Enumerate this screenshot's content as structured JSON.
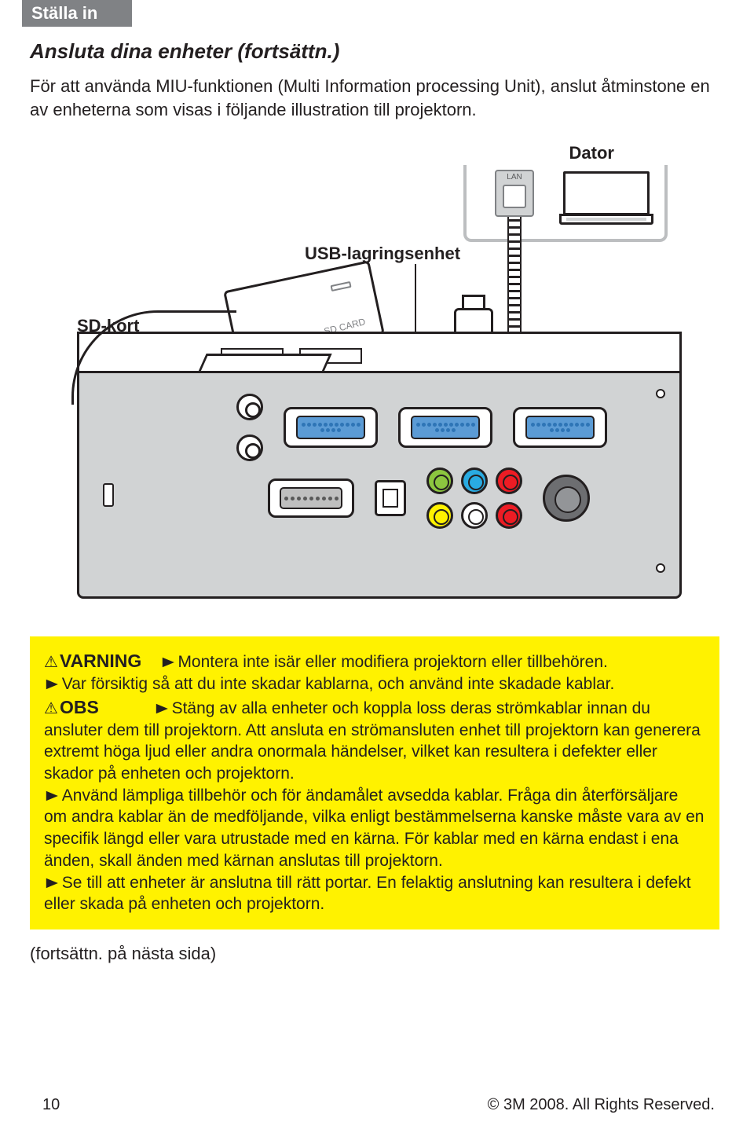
{
  "header": {
    "section": "Ställa in"
  },
  "title": "Ansluta dina enheter (fortsättn.)",
  "intro": "För att använda MIU-funktionen (Multi Information processing Unit), anslut åtminstone en av enheterna som visas i följande illustration till projektorn.",
  "diagram": {
    "labels": {
      "computer": "Dator",
      "usb": "USB-lagringsenhet",
      "sd": "SD-kort",
      "lan": "LAN",
      "sdcard": "SD CARD"
    }
  },
  "warning": {
    "warn_label": "VARNING",
    "obs_label": "OBS",
    "w1": "Montera inte isär eller modifiera projektorn eller tillbehören.",
    "w2": "Var försiktig så att du inte skadar kablarna, och använd inte skadade kablar.",
    "o1": "Stäng av alla enheter och koppla loss deras strömkablar innan du ansluter dem till projektorn. Att ansluta en strömansluten enhet till projektorn kan generera extremt höga ljud eller andra onormala händelser, vilket kan resultera i defekter eller skador på enheten och projektorn.",
    "o2": "Använd lämpliga tillbehör och för ändamålet avsedda kablar. Fråga din återförsäljare om andra kablar än de medföljande, vilka enligt bestämmelserna kanske måste vara av en specifik längd eller vara utrustade med en kärna. För kablar med en kärna endast i ena änden, skall änden med kärnan anslutas till projektorn.",
    "o3": "Se till att enheter är anslutna till rätt portar. En felaktig anslutning kan resultera i defekt eller skada på enheten och projektorn."
  },
  "continue": "(fortsättn. på nästa sida)",
  "footer": {
    "page": "10",
    "copyright": "© 3M 2008.  All Rights Reserved."
  },
  "colors": {
    "header_bg": "#808285",
    "warning_bg": "#fff200",
    "text": "#231f20",
    "vga_blue": "#5b9bd5",
    "rca_green": "#8cc63f",
    "rca_blue": "#29abe2",
    "rca_red": "#ed1c24",
    "rca_yellow": "#fff200",
    "proj_gray": "#d1d3d4"
  }
}
